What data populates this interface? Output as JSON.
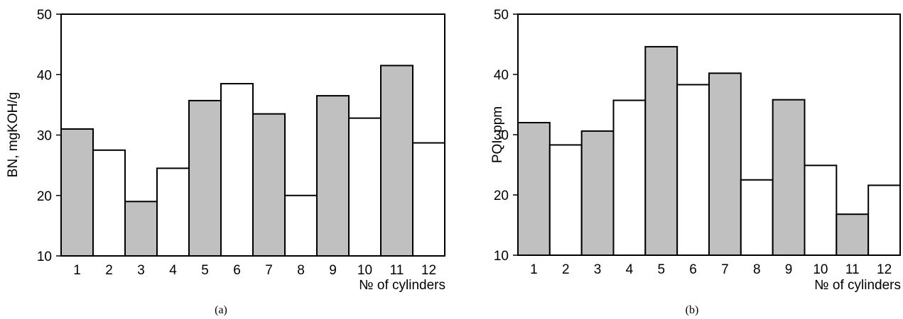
{
  "chart_data": [
    {
      "type": "bar",
      "caption": "(a)",
      "categories": [
        "1",
        "2",
        "3",
        "4",
        "5",
        "6",
        "7",
        "8",
        "9",
        "10",
        "11",
        "12"
      ],
      "values": [
        31,
        27.5,
        19,
        24.5,
        35.7,
        38.5,
        33.5,
        20,
        36.5,
        32.8,
        41.5,
        28.7
      ],
      "fills": [
        "#c0c0c0",
        "#ffffff",
        "#c0c0c0",
        "#ffffff",
        "#c0c0c0",
        "#ffffff",
        "#c0c0c0",
        "#ffffff",
        "#c0c0c0",
        "#ffffff",
        "#c0c0c0",
        "#ffffff"
      ],
      "xlabel": "№ of cylinders",
      "ylabel": "BN, mgKOH/g",
      "ylim": [
        10,
        50
      ],
      "yticks": [
        "10",
        "20",
        "30",
        "40",
        "50"
      ],
      "grid": false
    },
    {
      "type": "bar",
      "caption": "(b)",
      "categories": [
        "1",
        "2",
        "3",
        "4",
        "5",
        "6",
        "7",
        "8",
        "9",
        "10",
        "11",
        "12"
      ],
      "values": [
        32,
        28.3,
        30.6,
        35.7,
        44.6,
        38.3,
        40.2,
        22.5,
        35.8,
        24.9,
        16.8,
        21.6
      ],
      "fills": [
        "#c0c0c0",
        "#ffffff",
        "#c0c0c0",
        "#ffffff",
        "#c0c0c0",
        "#ffffff",
        "#c0c0c0",
        "#ffffff",
        "#c0c0c0",
        "#ffffff",
        "#c0c0c0",
        "#ffffff"
      ],
      "xlabel": "№ of cylinders",
      "ylabel": "PQI, ppm",
      "ylim": [
        10,
        50
      ],
      "yticks": [
        "10",
        "20",
        "30",
        "40",
        "50"
      ],
      "grid": false
    }
  ]
}
